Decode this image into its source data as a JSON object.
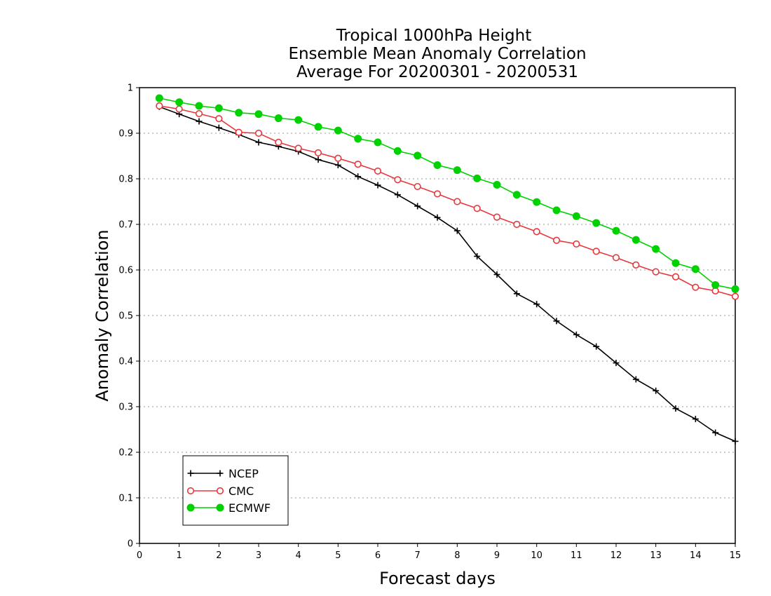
{
  "chart_data": {
    "type": "line",
    "title": [
      "Tropical 1000hPa Height",
      "Ensemble Mean Anomaly Correlation",
      "Average For 20200301 - 20200531"
    ],
    "xlabel": "Forecast days",
    "ylabel": "Anomaly Correlation",
    "xlim": [
      0,
      15
    ],
    "ylim": [
      0,
      1
    ],
    "x_ticks": [
      "0",
      "1",
      "2",
      "3",
      "4",
      "5",
      "6",
      "7",
      "8",
      "9",
      "10",
      "11",
      "12",
      "13",
      "14",
      "15"
    ],
    "y_ticks": [
      "0",
      "0.1",
      "0.2",
      "0.3",
      "0.4",
      "0.5",
      "0.6",
      "0.7",
      "0.8",
      "0.9",
      "1"
    ],
    "grid": "horizontal dotted",
    "legend_position": "bottom-left",
    "x": [
      0.5,
      1,
      1.5,
      2,
      2.5,
      3,
      3.5,
      4,
      4.5,
      5,
      5.5,
      6,
      6.5,
      7,
      7.5,
      8,
      8.5,
      9,
      9.5,
      10,
      10.5,
      11,
      11.5,
      12,
      12.5,
      13,
      13.5,
      14,
      14.5,
      15
    ],
    "series": [
      {
        "name": "NCEP",
        "color": "#000000",
        "marker": "plus",
        "values": [
          0.958,
          0.942,
          0.926,
          0.912,
          0.897,
          0.88,
          0.871,
          0.86,
          0.842,
          0.83,
          0.805,
          0.786,
          0.765,
          0.74,
          0.715,
          0.686,
          0.63,
          0.59,
          0.548,
          0.525,
          0.488,
          0.458,
          0.432,
          0.396,
          0.36,
          0.335,
          0.296,
          0.273,
          0.243,
          0.224
        ]
      },
      {
        "name": "CMC",
        "color": "#e8383d",
        "marker": "open-circle",
        "values": [
          0.96,
          0.953,
          0.943,
          0.932,
          0.902,
          0.9,
          0.88,
          0.867,
          0.857,
          0.845,
          0.832,
          0.817,
          0.798,
          0.783,
          0.767,
          0.75,
          0.735,
          0.716,
          0.7,
          0.684,
          0.665,
          0.657,
          0.641,
          0.627,
          0.611,
          0.596,
          0.585,
          0.562,
          0.554,
          0.542
        ]
      },
      {
        "name": "ECMWF",
        "color": "#00d200",
        "marker": "filled-circle",
        "values": [
          0.977,
          0.968,
          0.96,
          0.955,
          0.945,
          0.942,
          0.933,
          0.929,
          0.914,
          0.906,
          0.888,
          0.88,
          0.861,
          0.851,
          0.83,
          0.819,
          0.801,
          0.787,
          0.765,
          0.749,
          0.731,
          0.718,
          0.703,
          0.686,
          0.666,
          0.646,
          0.615,
          0.602,
          0.567,
          0.558
        ]
      }
    ]
  }
}
